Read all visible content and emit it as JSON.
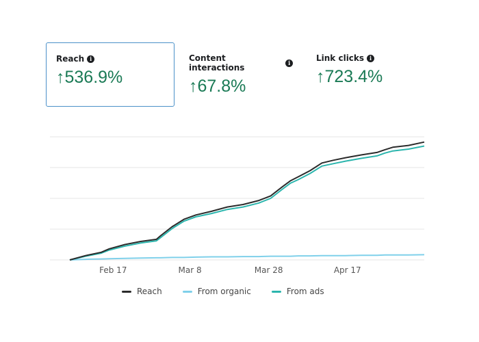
{
  "metrics": [
    {
      "title": "Reach",
      "arrow": "↑",
      "value": "536.9%",
      "selected": true
    },
    {
      "title": "Content interactions",
      "arrow": "↑",
      "value": "67.8%",
      "selected": false
    },
    {
      "title": "Link clicks",
      "arrow": "↑",
      "value": "723.4%",
      "selected": false
    }
  ],
  "info_icon": "i",
  "colors": {
    "reach": "#2b2b2b",
    "organic": "#7fd0ea",
    "ads": "#2bb5ad",
    "positive": "#1a7a55",
    "grid": "#e4e4e4"
  },
  "chart_data": {
    "type": "line",
    "title": "",
    "xlabel": "",
    "ylabel": "",
    "x_unit": "days since Feb 6",
    "xlim": [
      0,
      90
    ],
    "ylim": [
      0,
      4
    ],
    "grid": true,
    "x_ticks": [
      {
        "label": "Feb 17",
        "day": 11
      },
      {
        "label": "Mar 8",
        "day": 30.5
      },
      {
        "label": "Mar 28",
        "day": 50.5
      },
      {
        "label": "Apr 17",
        "day": 70.5
      }
    ],
    "legend_position": "bottom",
    "x": [
      0,
      4,
      8,
      10,
      14,
      18,
      22,
      23,
      26,
      29,
      32,
      36,
      40,
      44,
      48,
      51,
      54,
      56,
      58,
      61,
      64,
      67,
      70,
      74,
      78,
      80,
      82,
      86,
      90
    ],
    "series": [
      {
        "name": "Reach",
        "values": [
          0.0,
          0.14,
          0.25,
          0.36,
          0.5,
          0.6,
          0.67,
          0.78,
          1.08,
          1.32,
          1.46,
          1.58,
          1.72,
          1.8,
          1.93,
          2.08,
          2.38,
          2.57,
          2.7,
          2.9,
          3.15,
          3.24,
          3.32,
          3.41,
          3.49,
          3.58,
          3.66,
          3.72,
          3.83
        ]
      },
      {
        "name": "From organic",
        "values": [
          0.0,
          0.02,
          0.03,
          0.04,
          0.05,
          0.06,
          0.07,
          0.07,
          0.08,
          0.08,
          0.09,
          0.1,
          0.1,
          0.11,
          0.11,
          0.12,
          0.12,
          0.12,
          0.13,
          0.13,
          0.14,
          0.14,
          0.14,
          0.15,
          0.15,
          0.16,
          0.16,
          0.16,
          0.17
        ]
      },
      {
        "name": "From ads",
        "values": [
          0.0,
          0.12,
          0.22,
          0.32,
          0.45,
          0.55,
          0.62,
          0.72,
          1.02,
          1.26,
          1.4,
          1.51,
          1.64,
          1.72,
          1.85,
          2.0,
          2.3,
          2.49,
          2.61,
          2.81,
          3.05,
          3.13,
          3.21,
          3.3,
          3.38,
          3.47,
          3.54,
          3.6,
          3.7
        ]
      }
    ]
  }
}
